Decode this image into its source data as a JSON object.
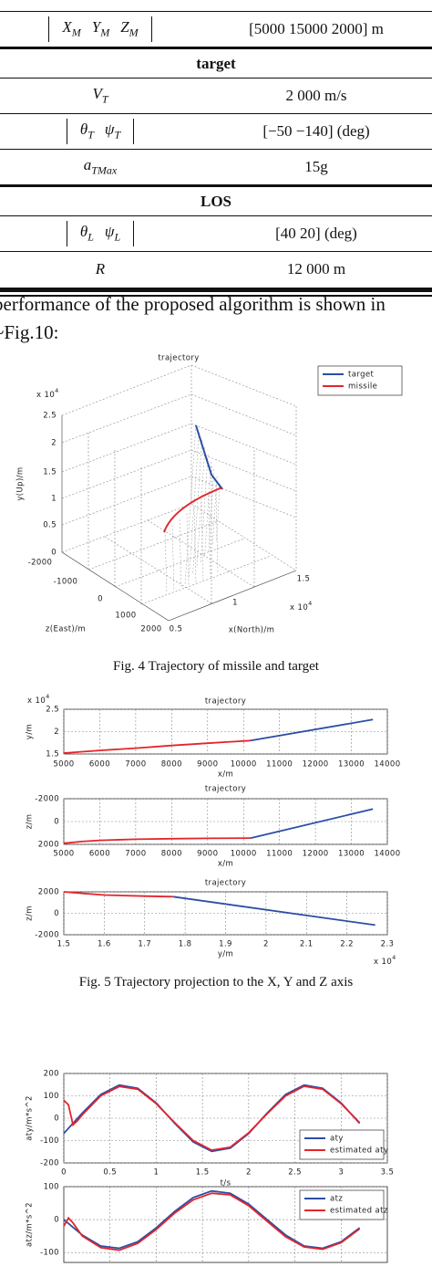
{
  "table": {
    "rows": [
      {
        "symbols": [
          [
            "X",
            "M"
          ],
          [
            "Y",
            "M"
          ],
          [
            "Z",
            "M"
          ]
        ],
        "value": "[5000   15000   2000] m"
      }
    ],
    "sections": [
      {
        "heading": "target",
        "rows": [
          {
            "symbols": [
              [
                "V",
                "T"
              ]
            ],
            "value": "2 000 m/s"
          },
          {
            "symbols": [
              [
                "θ",
                "T"
              ],
              [
                "ψ",
                "T"
              ]
            ],
            "value": "[−50   −140] (deg)"
          },
          {
            "symbols": [
              [
                "a",
                "TMax"
              ]
            ],
            "value": "15g"
          }
        ]
      },
      {
        "heading": "LOS",
        "rows": [
          {
            "symbols": [
              [
                "θ",
                "L"
              ],
              [
                "ψ",
                "L"
              ]
            ],
            "value": "[40   20] (deg)"
          },
          {
            "symbols": [
              [
                "R"
              ]
            ],
            "value": "12 000 m"
          }
        ]
      }
    ]
  },
  "paragraph": [
    "performance of the proposed algorithm is shown in",
    "~Fig.10:"
  ],
  "captions": [
    "Fig. 4 Trajectory of missile and target",
    "Fig. 5 Trajectory projection to the X, Y and Z axis"
  ],
  "chart_data": [
    {
      "type": "line3d",
      "title": "trajectory",
      "xlabel": "x(North)/m",
      "ylabel": "y(Up)/m",
      "zlabel": "z(East)/m",
      "xticks": [
        {
          "value": 5000,
          "label": "0.5"
        },
        {
          "value": 10000,
          "label": "1"
        },
        {
          "value": 15000,
          "label": "1.5"
        }
      ],
      "yticks": [
        0,
        {
          "value": 5000,
          "label": "0.5"
        },
        {
          "value": 10000,
          "label": "1"
        },
        {
          "value": 15000,
          "label": "1.5"
        },
        {
          "value": 20000,
          "label": "2"
        },
        {
          "value": 25000,
          "label": "2.5"
        }
      ],
      "zticks": [
        -2000,
        -1000,
        0,
        1000,
        2000
      ],
      "xmultiplier": {
        "base": "x 10",
        "exp": "4"
      },
      "ymultiplier": {
        "base": "x 10",
        "exp": "4"
      },
      "legend": "upper right",
      "series": [
        {
          "name": "target",
          "color": "#2b4ea6"
        },
        {
          "name": "missile",
          "color": "#e3252b"
        }
      ]
    },
    {
      "type": "line",
      "title": "trajectory",
      "xlabel": "x/m",
      "ylabel": "y/m",
      "grid": true,
      "xlim": [
        5000,
        14000
      ],
      "ylim": [
        15000,
        25000
      ],
      "xticks": [
        5000,
        6000,
        7000,
        8000,
        9000,
        10000,
        11000,
        12000,
        13000,
        14000
      ],
      "yticks": [
        {
          "value": 15000,
          "label": "1.5"
        },
        {
          "value": 20000,
          "label": "2"
        },
        {
          "value": 25000,
          "label": "2.5"
        }
      ],
      "ymultiplier": {
        "base": "x 10",
        "exp": "4"
      },
      "series": [
        {
          "color": "#2b4ea6",
          "x": [
            10200,
            13600
          ],
          "values": [
            18000,
            22700
          ]
        },
        {
          "color": "#e3252b",
          "x": [
            5000,
            6000,
            7000,
            8000,
            9000,
            10200
          ],
          "values": [
            15200,
            15800,
            16300,
            16900,
            17400,
            18000
          ]
        }
      ]
    },
    {
      "type": "line",
      "title": "trajectory",
      "xlabel": "x/m",
      "ylabel": "z/m",
      "grid": true,
      "y_reversed": true,
      "xlim": [
        5000,
        14000
      ],
      "ylim": [
        -2000,
        2000
      ],
      "xticks": [
        5000,
        6000,
        7000,
        8000,
        9000,
        10000,
        11000,
        12000,
        13000,
        14000
      ],
      "yticks": [
        -2000,
        0,
        2000
      ],
      "series": [
        {
          "color": "#2b4ea6",
          "x": [
            10200,
            13600
          ],
          "values": [
            1450,
            -1100
          ]
        },
        {
          "color": "#e3252b",
          "x": [
            5000,
            5500,
            6000,
            7000,
            8000,
            9000,
            10200
          ],
          "values": [
            1900,
            1750,
            1650,
            1550,
            1500,
            1470,
            1450
          ]
        }
      ]
    },
    {
      "type": "line",
      "title": "trajectory",
      "xlabel": "y/m",
      "ylabel": "z/m",
      "grid": true,
      "xlim": [
        15000,
        23000
      ],
      "ylim": [
        -2000,
        2000
      ],
      "xticks": [
        {
          "value": 15000,
          "label": "1.5"
        },
        {
          "value": 16000,
          "label": "1.6"
        },
        {
          "value": 17000,
          "label": "1.7"
        },
        {
          "value": 18000,
          "label": "1.8"
        },
        {
          "value": 19000,
          "label": "1.9"
        },
        {
          "value": 20000,
          "label": "2"
        },
        {
          "value": 21000,
          "label": "2.1"
        },
        {
          "value": 22000,
          "label": "2.2"
        },
        {
          "value": 23000,
          "label": "2.3"
        }
      ],
      "yticks": [
        -2000,
        0,
        2000
      ],
      "xmultiplier": {
        "base": "x 10",
        "exp": "4"
      },
      "series": [
        {
          "color": "#2b4ea6",
          "x": [
            17700,
            22700
          ],
          "values": [
            1550,
            -1100
          ]
        },
        {
          "color": "#e3252b",
          "x": [
            15000,
            15500,
            16000,
            17000,
            17700
          ],
          "values": [
            2000,
            1850,
            1700,
            1600,
            1550
          ]
        }
      ]
    },
    {
      "type": "line",
      "xlabel": "t/s",
      "ylabel": "aty/m*s^2",
      "grid": true,
      "legend": "lower right",
      "xlim": [
        0,
        3.5
      ],
      "ylim": [
        -200,
        200
      ],
      "xticks": [
        0,
        0.5,
        1,
        1.5,
        2,
        2.5,
        3,
        3.5
      ],
      "yticks": [
        -200,
        -100,
        0,
        100,
        200
      ],
      "series": [
        {
          "name": "aty",
          "color": "#2b4ea6",
          "x": [
            0,
            0.2,
            0.4,
            0.6,
            0.8,
            1,
            1.2,
            1.4,
            1.6,
            1.8,
            2,
            2.2,
            2.4,
            2.6,
            2.8,
            3,
            3.2
          ],
          "values": [
            -68,
            23,
            106,
            148,
            134,
            68,
            -23,
            -106,
            -148,
            -134,
            -68,
            23,
            106,
            148,
            134,
            68,
            -23
          ]
        },
        {
          "name": "estimated aty",
          "color": "#e3252b",
          "x": [
            0,
            0.05,
            0.1,
            0.15,
            0.2,
            0.4,
            0.6,
            0.8,
            1,
            1.2,
            1.4,
            1.6,
            1.8,
            2,
            2.2,
            2.4,
            2.6,
            2.8,
            3,
            3.2
          ],
          "values": [
            80,
            60,
            -30,
            -10,
            15,
            100,
            142,
            130,
            65,
            -20,
            -100,
            -143,
            -130,
            -65,
            20,
            100,
            143,
            130,
            65,
            -20
          ]
        }
      ]
    },
    {
      "type": "line",
      "ylabel": "atz/m*s^2",
      "grid": true,
      "legend": "upper right",
      "xlim": [
        0,
        3.5
      ],
      "ylim": [
        -130,
        100
      ],
      "xgrid": [
        0.5,
        1,
        1.5,
        2,
        2.5,
        3
      ],
      "yticks": [
        -100,
        0,
        100
      ],
      "series": [
        {
          "name": "atz",
          "color": "#2b4ea6",
          "x": [
            0,
            0.2,
            0.4,
            0.6,
            0.8,
            1,
            1.2,
            1.4,
            1.6,
            1.8,
            2,
            2.2,
            2.4,
            2.6,
            2.8,
            3,
            3.2
          ],
          "values": [
            0,
            -47,
            -80,
            -87,
            -67,
            -25,
            25,
            67,
            87,
            80,
            47,
            0,
            -47,
            -80,
            -87,
            -67,
            -25
          ]
        },
        {
          "name": "estimated atz",
          "color": "#e3252b",
          "x": [
            0,
            0.05,
            0.1,
            0.2,
            0.4,
            0.6,
            0.8,
            1,
            1.2,
            1.4,
            1.6,
            1.8,
            2,
            2.2,
            2.4,
            2.6,
            2.8,
            3,
            3.2
          ],
          "values": [
            -20,
            5,
            -10,
            -50,
            -85,
            -93,
            -72,
            -30,
            20,
            60,
            80,
            75,
            42,
            -5,
            -52,
            -83,
            -90,
            -70,
            -28
          ]
        }
      ]
    }
  ]
}
